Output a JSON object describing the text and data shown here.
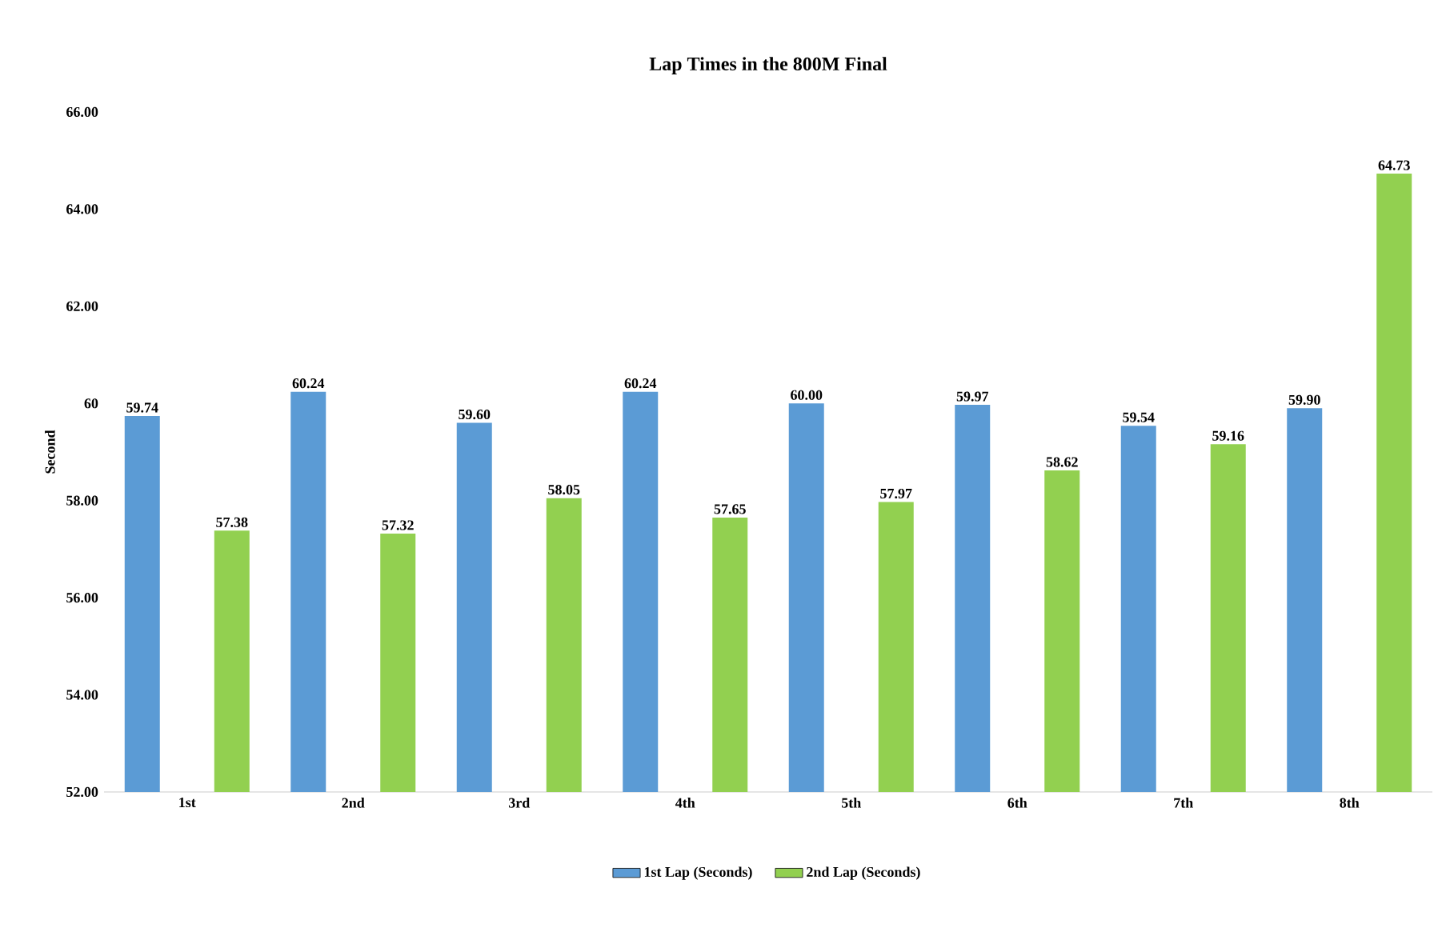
{
  "chart_data": {
    "type": "bar",
    "title": "Lap Times in the 800M Final",
    "ylabel": "Second",
    "categories": [
      "1st",
      "2nd",
      "3rd",
      "4th",
      "5th",
      "6th",
      "7th",
      "8th"
    ],
    "series": [
      {
        "name": "1st Lap (Seconds)",
        "color": "#5b9bd5",
        "values": [
          59.74,
          60.24,
          59.6,
          60.24,
          60.0,
          59.97,
          59.54,
          59.9
        ],
        "value_labels": [
          "59.74",
          "60.24",
          "59.60",
          "60.24",
          "60.00",
          "59.97",
          "59.54",
          "59.90"
        ]
      },
      {
        "name": "2nd Lap (Seconds)",
        "color": "#92d050",
        "values": [
          57.38,
          57.32,
          58.05,
          57.65,
          57.97,
          58.62,
          59.16,
          64.73
        ],
        "value_labels": [
          "57.38",
          "57.32",
          "58.05",
          "57.65",
          "57.97",
          "58.62",
          "59.16",
          "64.73"
        ]
      }
    ],
    "ylim": [
      52,
      66
    ],
    "yticks": [
      {
        "value": 52,
        "label": "52.00"
      },
      {
        "value": 54,
        "label": "54.00"
      },
      {
        "value": 56,
        "label": "56.00"
      },
      {
        "value": 58,
        "label": "58.00"
      },
      60,
      {
        "value": 62,
        "label": "62.00"
      },
      {
        "value": 64,
        "label": "64.00"
      },
      {
        "value": 66,
        "label": "66.00"
      }
    ],
    "grid": false,
    "legend": "bottom"
  }
}
